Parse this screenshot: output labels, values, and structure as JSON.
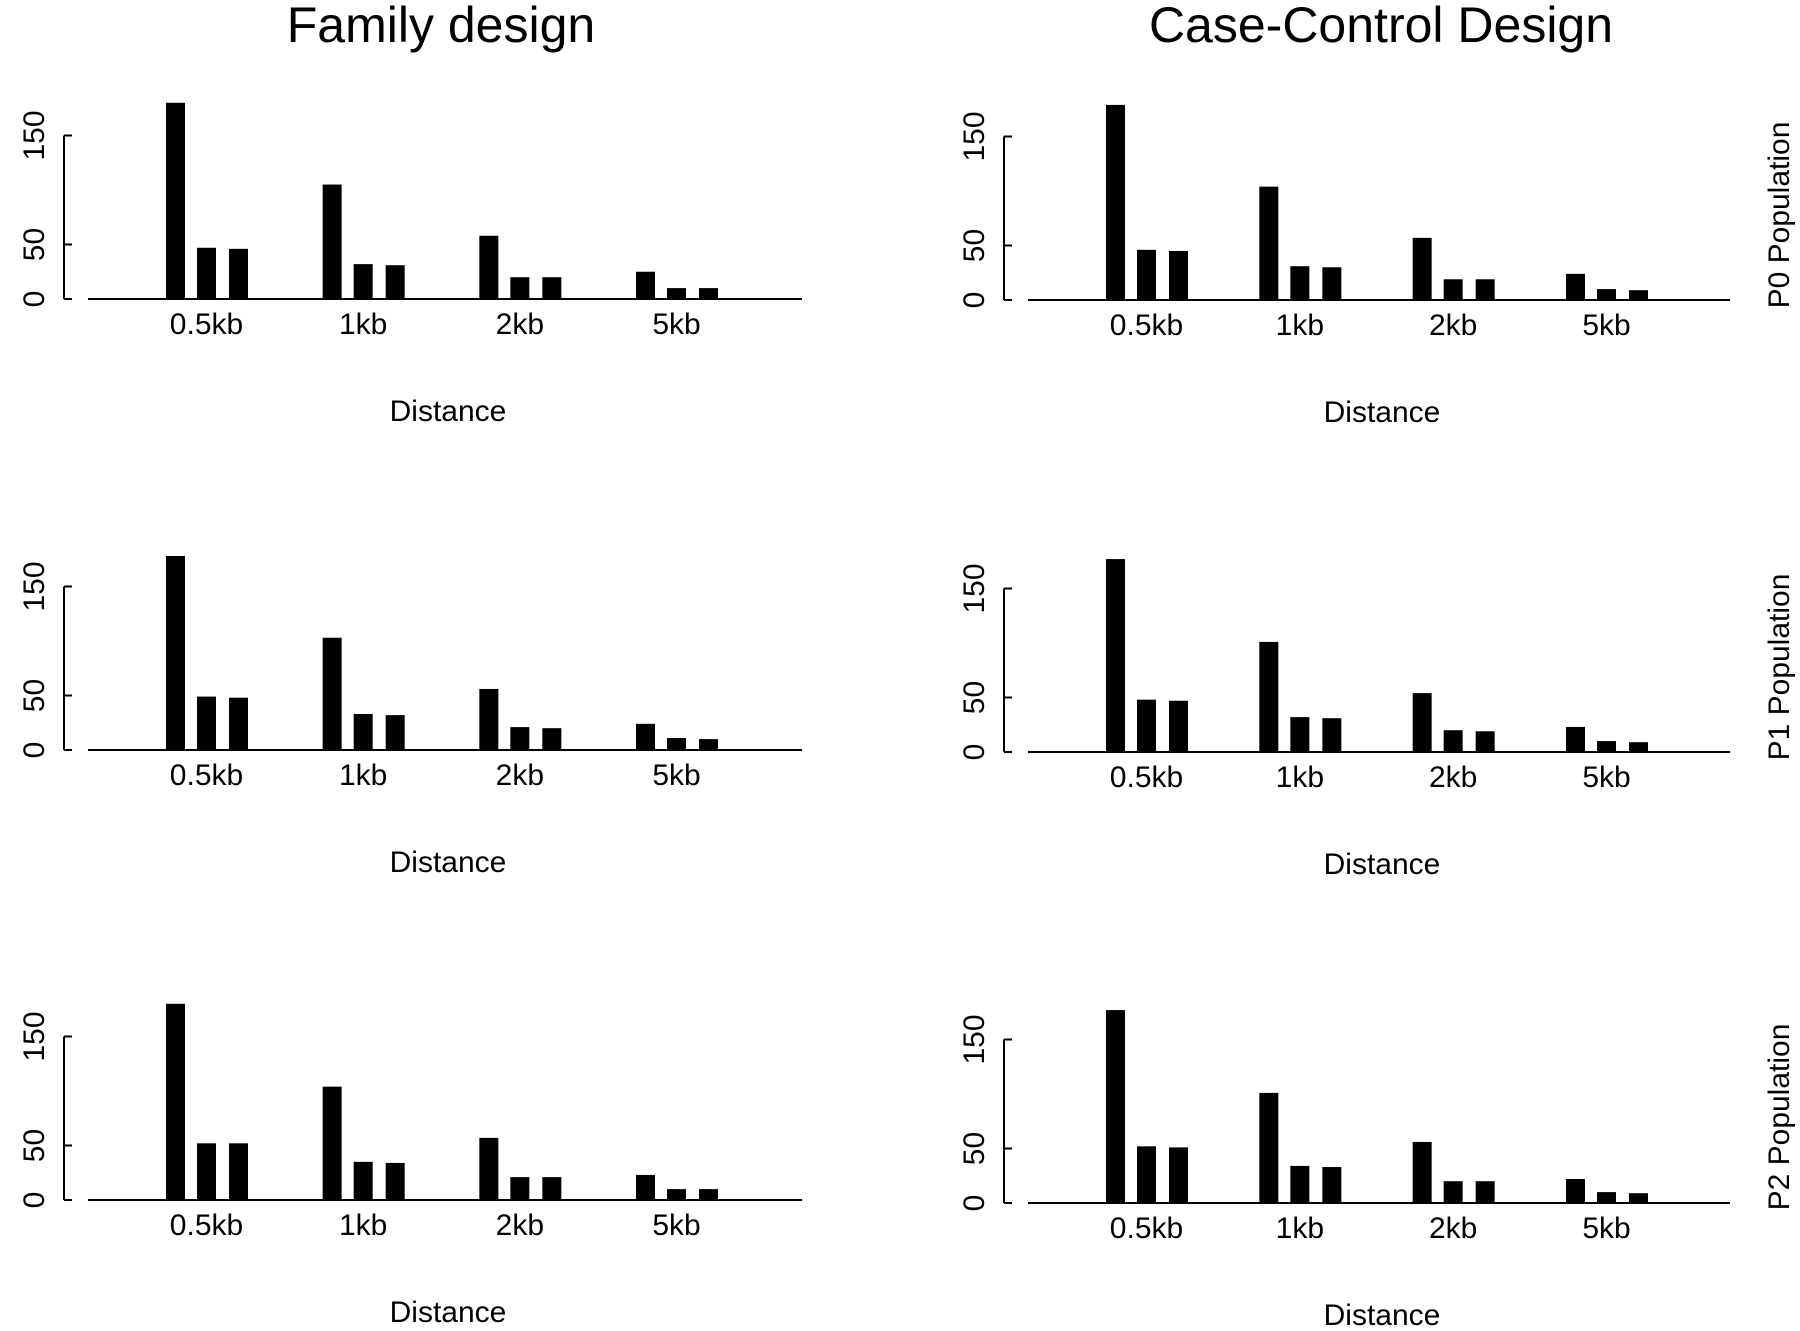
{
  "col_titles": [
    "Family design",
    "Case-Control Design"
  ],
  "row_labels": [
    "P0 Population",
    "P1 Population",
    "P2 Population"
  ],
  "chart_data": [
    {
      "type": "bar",
      "design": "Family design",
      "population": "P0 Population",
      "categories": [
        "0.5kb",
        "1kb",
        "2kb",
        "5kb"
      ],
      "series": [
        {
          "values": [
            180,
            105,
            58,
            25
          ]
        },
        {
          "values": [
            47,
            32,
            20,
            10
          ]
        },
        {
          "values": [
            46,
            31,
            20,
            10
          ]
        }
      ],
      "xlabel": "Distance",
      "ylabel": "",
      "ylim": [
        0,
        190
      ],
      "yticks": [
        0,
        50,
        150
      ],
      "bar_color": "#000000"
    },
    {
      "type": "bar",
      "design": "Case-Control Design",
      "population": "P0 Population",
      "categories": [
        "0.5kb",
        "1kb",
        "2kb",
        "5kb"
      ],
      "series": [
        {
          "values": [
            179,
            104,
            57,
            24
          ]
        },
        {
          "values": [
            46,
            31,
            19,
            10
          ]
        },
        {
          "values": [
            45,
            30,
            19,
            9
          ]
        }
      ],
      "xlabel": "Distance",
      "ylabel": "",
      "ylim": [
        0,
        190
      ],
      "yticks": [
        0,
        50,
        150
      ],
      "bar_color": "#000000"
    },
    {
      "type": "bar",
      "design": "Family design",
      "population": "P1 Population",
      "categories": [
        "0.5kb",
        "1kb",
        "2kb",
        "5kb"
      ],
      "series": [
        {
          "values": [
            178,
            103,
            56,
            24
          ]
        },
        {
          "values": [
            49,
            33,
            21,
            11
          ]
        },
        {
          "values": [
            48,
            32,
            20,
            10
          ]
        }
      ],
      "xlabel": "Distance",
      "ylabel": "",
      "ylim": [
        0,
        190
      ],
      "yticks": [
        0,
        50,
        150
      ],
      "bar_color": "#000000"
    },
    {
      "type": "bar",
      "design": "Case-Control Design",
      "population": "P1 Population",
      "categories": [
        "0.5kb",
        "1kb",
        "2kb",
        "5kb"
      ],
      "series": [
        {
          "values": [
            177,
            101,
            54,
            23
          ]
        },
        {
          "values": [
            48,
            32,
            20,
            10
          ]
        },
        {
          "values": [
            47,
            31,
            19,
            9
          ]
        }
      ],
      "xlabel": "Distance",
      "ylabel": "",
      "ylim": [
        0,
        190
      ],
      "yticks": [
        0,
        50,
        150
      ],
      "bar_color": "#000000"
    },
    {
      "type": "bar",
      "design": "Family design",
      "population": "P2 Population",
      "categories": [
        "0.5kb",
        "1kb",
        "2kb",
        "5kb"
      ],
      "series": [
        {
          "values": [
            180,
            104,
            57,
            23
          ]
        },
        {
          "values": [
            52,
            35,
            21,
            10
          ]
        },
        {
          "values": [
            52,
            34,
            21,
            10
          ]
        }
      ],
      "xlabel": "Distance",
      "ylabel": "",
      "ylim": [
        0,
        190
      ],
      "yticks": [
        0,
        50,
        150
      ],
      "bar_color": "#000000"
    },
    {
      "type": "bar",
      "design": "Case-Control Design",
      "population": "P2 Population",
      "categories": [
        "0.5kb",
        "1kb",
        "2kb",
        "5kb"
      ],
      "series": [
        {
          "values": [
            177,
            101,
            56,
            22
          ]
        },
        {
          "values": [
            52,
            34,
            20,
            10
          ]
        },
        {
          "values": [
            51,
            33,
            20,
            9
          ]
        }
      ],
      "xlabel": "Distance",
      "ylabel": "",
      "ylim": [
        0,
        190
      ],
      "yticks": [
        0,
        50,
        150
      ],
      "bar_color": "#000000"
    }
  ]
}
